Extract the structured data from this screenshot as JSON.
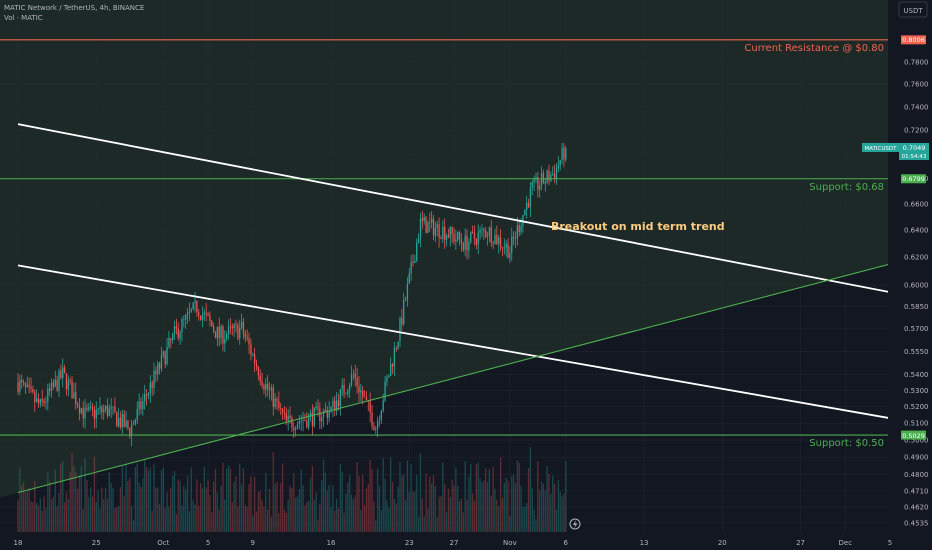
{
  "header": {
    "symbol_title": "MATIC Network / TetherUS, 4h, BINANCE",
    "volume_label": "Vol · MATIC",
    "currency": "USDT"
  },
  "annotations": {
    "resistance_label": "Current Resistance @ $0.80",
    "support_high_label": "Support: $0.68",
    "support_low_label": "Support: $0.50",
    "breakout_label": "Breakout on mid term trend"
  },
  "price_tags": {
    "resistance": "0.8006",
    "support_high": "0.6799",
    "support_low": "0.5029",
    "last_symbol": "MATICUSDT",
    "last_price": "0.7049",
    "countdown": "01:54:43"
  },
  "colors": {
    "background": "#131722",
    "up": "#26a69a",
    "down": "#ef5350",
    "resistance": "#f2634f",
    "support": "#4caf50",
    "trendline": "#ffffff",
    "breakout_text": "#ffcc80"
  },
  "chart_data": {
    "type": "candlestick",
    "title": "MATIC Network / TetherUS, 4h, BINANCE",
    "y_scale": "log",
    "ylim": [
      0.445,
      0.85
    ],
    "y_ticks": [
      "0.7800",
      "0.7600",
      "0.7400",
      "0.7200",
      "0.7000",
      "0.6800",
      "0.6600",
      "0.6400",
      "0.6200",
      "0.6000",
      "0.5850",
      "0.5700",
      "0.5550",
      "0.5400",
      "0.5300",
      "0.5200",
      "0.5100",
      "0.5000",
      "0.4900",
      "0.4800",
      "0.4710",
      "0.4620",
      "0.4535"
    ],
    "x_ticks": [
      "18",
      "25",
      "Oct",
      "5",
      "9",
      "16",
      "23",
      "27",
      "Nov",
      "6",
      "13",
      "20",
      "27",
      "Dec",
      "5"
    ],
    "x_range": [
      "2021-09-18",
      "2021-12-05"
    ],
    "horizontal_levels": [
      {
        "name": "Current Resistance",
        "price": 0.8006
      },
      {
        "name": "Support",
        "price": 0.6799
      },
      {
        "name": "Support",
        "price": 0.5029
      }
    ],
    "trend_lines": [
      {
        "kind": "descending",
        "from": [
          "2021-09-18",
          0.725
        ],
        "to": [
          "2021-12-05",
          0.595
        ]
      },
      {
        "kind": "descending",
        "from": [
          "2021-09-18",
          0.614
        ],
        "to": [
          "2021-12-05",
          0.513
        ]
      },
      {
        "kind": "ascending",
        "from": [
          "2021-09-18",
          0.47
        ],
        "to": [
          "2021-12-05",
          0.615
        ]
      }
    ],
    "price_path": [
      [
        "2021-09-18",
        0.535
      ],
      [
        "2021-09-20",
        0.52
      ],
      [
        "2021-09-22",
        0.54
      ],
      [
        "2021-09-24",
        0.515
      ],
      [
        "2021-09-26",
        0.518
      ],
      [
        "2021-09-28",
        0.506
      ],
      [
        "2021-09-30",
        0.535
      ],
      [
        "2021-10-02",
        0.566
      ],
      [
        "2021-10-04",
        0.585
      ],
      [
        "2021-10-06",
        0.565
      ],
      [
        "2021-10-08",
        0.57
      ],
      [
        "2021-10-10",
        0.535
      ],
      [
        "2021-10-12",
        0.51
      ],
      [
        "2021-10-14",
        0.513
      ],
      [
        "2021-10-16",
        0.518
      ],
      [
        "2021-10-18",
        0.54
      ],
      [
        "2021-10-20",
        0.508
      ],
      [
        "2021-10-22",
        0.565
      ],
      [
        "2021-10-24",
        0.645
      ],
      [
        "2021-10-26",
        0.64
      ],
      [
        "2021-10-28",
        0.63
      ],
      [
        "2021-10-30",
        0.64
      ],
      [
        "2021-11-01",
        0.625
      ],
      [
        "2021-11-03",
        0.672
      ],
      [
        "2021-11-05",
        0.685
      ],
      [
        "2021-11-06",
        0.705
      ]
    ],
    "last_price": 0.7049,
    "volume_series": "Vol · MATIC"
  }
}
